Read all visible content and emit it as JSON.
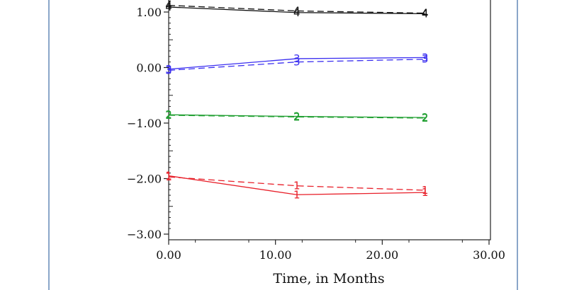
{
  "chart_data": {
    "type": "line",
    "xlabel": "Time, in Months",
    "ylabel": "",
    "xlim": [
      0,
      30
    ],
    "ylim": [
      -3,
      1.2
    ],
    "x_ticks": [
      {
        "value": 0,
        "label": "0.00"
      },
      {
        "value": 10,
        "label": "10.00"
      },
      {
        "value": 20,
        "label": "20.00"
      },
      {
        "value": 30,
        "label": "30.00"
      }
    ],
    "y_ticks": [
      {
        "value": 1,
        "label": "1.00"
      },
      {
        "value": 0,
        "label": "0.00"
      },
      {
        "value": -1,
        "label": "−1.00"
      },
      {
        "value": -2,
        "label": "−2.00"
      },
      {
        "value": -3,
        "label": "−3.00"
      }
    ],
    "series": [
      {
        "marker": "1",
        "color": "#e8202a",
        "style": "solid",
        "points": [
          {
            "x": 0,
            "y": -1.95
          },
          {
            "x": 12,
            "y": -2.29
          },
          {
            "x": 24,
            "y": -2.25
          }
        ]
      },
      {
        "marker": "1",
        "color": "#e8202a",
        "style": "dashed",
        "points": [
          {
            "x": 0,
            "y": -1.97
          },
          {
            "x": 12,
            "y": -2.13
          },
          {
            "x": 24,
            "y": -2.21
          }
        ]
      },
      {
        "marker": "2",
        "color": "#22a033",
        "style": "solid",
        "points": [
          {
            "x": 0,
            "y": -0.85
          },
          {
            "x": 12,
            "y": -0.88
          },
          {
            "x": 24,
            "y": -0.9
          }
        ]
      },
      {
        "marker": "2",
        "color": "#22a033",
        "style": "dashed",
        "points": [
          {
            "x": 0,
            "y": -0.86
          },
          {
            "x": 12,
            "y": -0.89
          },
          {
            "x": 24,
            "y": -0.91
          }
        ]
      },
      {
        "marker": "3",
        "color": "#3b2ff0",
        "style": "solid",
        "points": [
          {
            "x": 0,
            "y": -0.03
          },
          {
            "x": 12,
            "y": 0.16
          },
          {
            "x": 24,
            "y": 0.18
          }
        ]
      },
      {
        "marker": "3",
        "color": "#3b2ff0",
        "style": "dashed",
        "points": [
          {
            "x": 0,
            "y": -0.05
          },
          {
            "x": 12,
            "y": 0.1
          },
          {
            "x": 24,
            "y": 0.15
          }
        ]
      },
      {
        "marker": "4",
        "color": "#111111",
        "style": "solid",
        "points": [
          {
            "x": 0,
            "y": 1.09
          },
          {
            "x": 12,
            "y": 0.99
          },
          {
            "x": 24,
            "y": 0.97
          }
        ]
      },
      {
        "marker": "4",
        "color": "#111111",
        "style": "dashed",
        "points": [
          {
            "x": 0,
            "y": 1.12
          },
          {
            "x": 12,
            "y": 1.02
          },
          {
            "x": 24,
            "y": 0.98
          }
        ]
      }
    ]
  }
}
